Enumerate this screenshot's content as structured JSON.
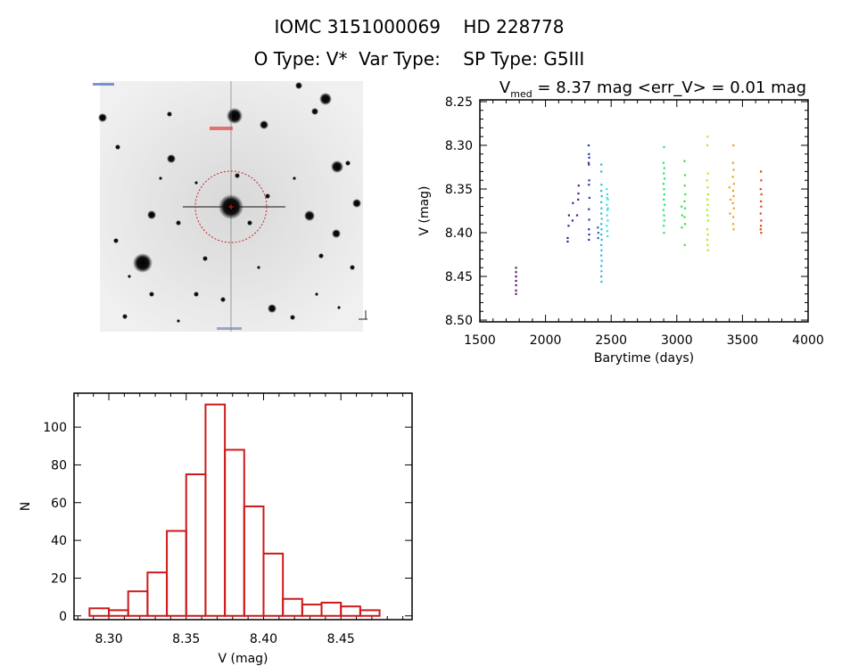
{
  "header": {
    "title_line1": "IOMC 3151000069    HD 228778",
    "title_line2": "O Type: V*  Var Type:    SP Type: G5III"
  },
  "finder_image": {
    "description_label": "DSS finder chart",
    "target_marker_color": "#cc2222"
  },
  "chart_data": [
    {
      "type": "scatter",
      "title_prefix": "V",
      "title_sub": "med",
      "title_rest": " = 8.37 mag <err_V> = 0.01 mag",
      "xlabel": "Barytime (days)",
      "ylabel": "V (mag)",
      "xlim": [
        1500,
        4000
      ],
      "ylim": [
        8.248,
        8.502
      ],
      "y_inverted": true,
      "xticks": [
        1500,
        2000,
        2500,
        3000,
        3500,
        4000
      ],
      "xtick_labels": [
        "1500",
        "2000",
        "2500",
        "3000",
        "3500",
        "4000"
      ],
      "yticks": [
        8.25,
        8.3,
        8.35,
        8.4,
        8.45,
        8.5
      ],
      "ytick_labels": [
        "8.25",
        "8.30",
        "8.35",
        "8.40",
        "8.45",
        "8.50"
      ],
      "series": [
        {
          "color": "#5a1a6e",
          "points": [
            [
              1775,
              8.44
            ],
            [
              1775,
              8.445
            ],
            [
              1775,
              8.45
            ],
            [
              1775,
              8.455
            ],
            [
              1775,
              8.46
            ],
            [
              1775,
              8.466
            ],
            [
              1775,
              8.47
            ]
          ]
        },
        {
          "color": "#4a1a8e",
          "points": [
            [
              2168,
              8.41
            ],
            [
              2168,
              8.406
            ],
            [
              2175,
              8.392
            ],
            [
              2178,
              8.38
            ],
            [
              2205,
              8.386
            ],
            [
              2208,
              8.366
            ],
            [
              2240,
              8.38
            ],
            [
              2248,
              8.362
            ],
            [
              2252,
              8.346
            ],
            [
              2250,
              8.355
            ]
          ]
        },
        {
          "color": "#2a3aa8",
          "points": [
            [
              2328,
              8.3
            ],
            [
              2330,
              8.31
            ],
            [
              2332,
              8.314
            ],
            [
              2328,
              8.32
            ],
            [
              2330,
              8.322
            ],
            [
              2332,
              8.34
            ],
            [
              2330,
              8.345
            ],
            [
              2334,
              8.36
            ],
            [
              2330,
              8.373
            ],
            [
              2332,
              8.385
            ],
            [
              2330,
              8.396
            ],
            [
              2332,
              8.402
            ],
            [
              2330,
              8.408
            ]
          ]
        },
        {
          "color": "#2f62b8",
          "points": [
            [
              2398,
              8.394
            ],
            [
              2402,
              8.4
            ],
            [
              2400,
              8.406
            ]
          ]
        },
        {
          "color": "#36b8e0",
          "points": [
            [
              2424,
              8.322
            ],
            [
              2424,
              8.33
            ],
            [
              2426,
              8.345
            ],
            [
              2424,
              8.352
            ],
            [
              2428,
              8.358
            ],
            [
              2424,
              8.365
            ],
            [
              2426,
              8.372
            ],
            [
              2424,
              8.378
            ],
            [
              2428,
              8.384
            ],
            [
              2424,
              8.39
            ],
            [
              2426,
              8.396
            ],
            [
              2424,
              8.402
            ],
            [
              2428,
              8.408
            ],
            [
              2424,
              8.414
            ],
            [
              2426,
              8.42
            ],
            [
              2424,
              8.426
            ],
            [
              2428,
              8.432
            ],
            [
              2424,
              8.438
            ],
            [
              2426,
              8.444
            ],
            [
              2424,
              8.45
            ],
            [
              2426,
              8.456
            ]
          ]
        },
        {
          "color": "#38e0e0",
          "points": [
            [
              2466,
              8.35
            ],
            [
              2470,
              8.356
            ],
            [
              2474,
              8.362
            ],
            [
              2466,
              8.368
            ],
            [
              2472,
              8.374
            ],
            [
              2468,
              8.38
            ],
            [
              2474,
              8.386
            ],
            [
              2466,
              8.392
            ],
            [
              2470,
              8.398
            ],
            [
              2472,
              8.404
            ],
            [
              2468,
              8.36
            ],
            [
              2474,
              8.372
            ]
          ]
        },
        {
          "color": "#2ee07a",
          "points": [
            [
              2902,
              8.302
            ],
            [
              2898,
              8.32
            ],
            [
              2904,
              8.326
            ],
            [
              2900,
              8.332
            ],
            [
              2906,
              8.338
            ],
            [
              2898,
              8.344
            ],
            [
              2902,
              8.35
            ],
            [
              2904,
              8.356
            ],
            [
              2900,
              8.362
            ],
            [
              2906,
              8.368
            ],
            [
              2898,
              8.374
            ],
            [
              2902,
              8.38
            ],
            [
              2904,
              8.386
            ],
            [
              2900,
              8.392
            ],
            [
              2902,
              8.4
            ]
          ]
        },
        {
          "color": "#3ae040",
          "points": [
            [
              3058,
              8.318
            ],
            [
              3062,
              8.334
            ],
            [
              3036,
              8.37
            ],
            [
              3040,
              8.38
            ],
            [
              3038,
              8.394
            ],
            [
              3060,
              8.346
            ],
            [
              3064,
              8.356
            ],
            [
              3058,
              8.364
            ],
            [
              3062,
              8.372
            ],
            [
              3058,
              8.382
            ],
            [
              3062,
              8.39
            ],
            [
              3060,
              8.414
            ]
          ]
        },
        {
          "color": "#b0ee20",
          "points": [
            [
              3234,
              8.29
            ],
            [
              3232,
              8.3
            ],
            [
              3236,
              8.332
            ],
            [
              3230,
              8.34
            ],
            [
              3234,
              8.348
            ],
            [
              3238,
              8.356
            ],
            [
              3232,
              8.362
            ],
            [
              3236,
              8.368
            ],
            [
              3230,
              8.374
            ],
            [
              3234,
              8.38
            ],
            [
              3238,
              8.386
            ],
            [
              3232,
              8.396
            ],
            [
              3236,
              8.402
            ],
            [
              3230,
              8.408
            ],
            [
              3234,
              8.414
            ],
            [
              3236,
              8.42
            ]
          ]
        },
        {
          "color": "#f0a020",
          "points": [
            [
              3430,
              8.3
            ],
            [
              3428,
              8.32
            ],
            [
              3432,
              8.328
            ],
            [
              3426,
              8.336
            ],
            [
              3434,
              8.344
            ],
            [
              3400,
              8.348
            ],
            [
              3428,
              8.352
            ],
            [
              3432,
              8.358
            ],
            [
              3408,
              8.362
            ],
            [
              3426,
              8.366
            ],
            [
              3434,
              8.372
            ],
            [
              3404,
              8.378
            ],
            [
              3430,
              8.382
            ],
            [
              3428,
              8.39
            ],
            [
              3432,
              8.396
            ]
          ]
        },
        {
          "color": "#dd4a1e",
          "points": [
            [
              3640,
              8.33
            ],
            [
              3642,
              8.34
            ],
            [
              3638,
              8.35
            ],
            [
              3644,
              8.356
            ],
            [
              3640,
              8.364
            ],
            [
              3642,
              8.37
            ],
            [
              3638,
              8.378
            ],
            [
              3642,
              8.386
            ],
            [
              3640,
              8.392
            ],
            [
              3638,
              8.396
            ],
            [
              3642,
              8.4
            ]
          ]
        }
      ]
    },
    {
      "type": "bar",
      "subtype": "histogram",
      "xlabel": "V (mag)",
      "ylabel": "N",
      "xlim": [
        8.2775,
        8.496
      ],
      "ylim": [
        -2,
        118
      ],
      "bin_start": 8.2875,
      "bin_width": 0.0125,
      "values": [
        4,
        3,
        13,
        23,
        45,
        75,
        112,
        88,
        58,
        33,
        9,
        6,
        7,
        5,
        3
      ],
      "color": "#cc1a1a",
      "xticks": [
        8.3,
        8.35,
        8.4,
        8.45
      ],
      "xtick_labels": [
        "8.30",
        "8.35",
        "8.40",
        "8.45"
      ],
      "yticks": [
        0,
        20,
        40,
        60,
        80,
        100
      ],
      "ytick_labels": [
        "0",
        "20",
        "40",
        "60",
        "80",
        "100"
      ]
    }
  ]
}
